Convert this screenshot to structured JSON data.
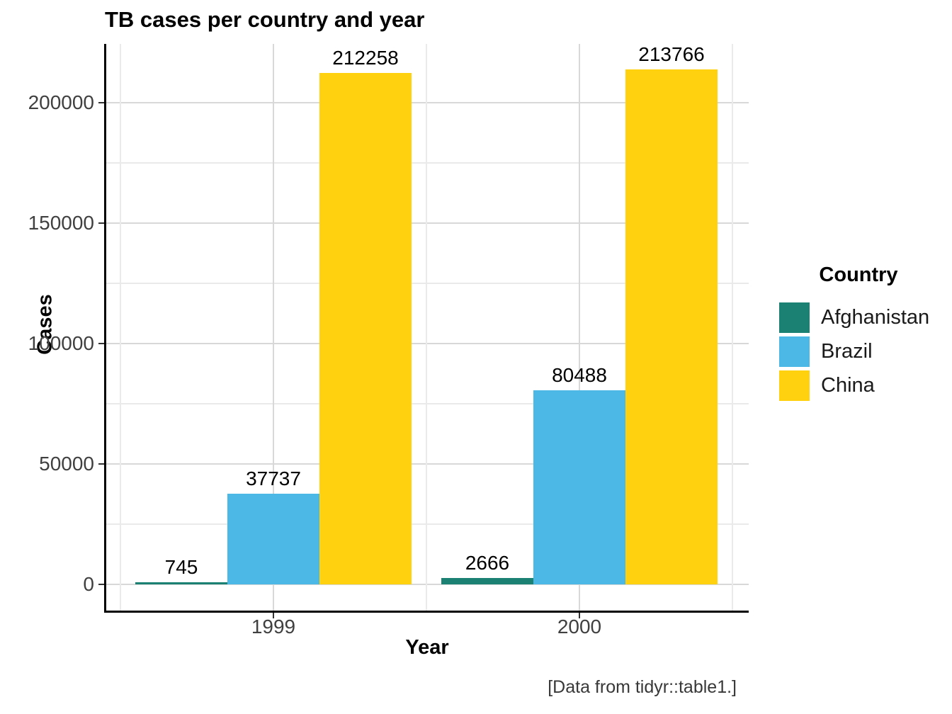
{
  "chart_data": {
    "type": "bar",
    "title": "TB cases per country and year",
    "xlabel": "Year",
    "ylabel": "Cases",
    "caption": "[Data from tidyr::table1.]",
    "legend_title": "Country",
    "legend_position": "right",
    "grid": "major+minor",
    "bar_labels": true,
    "categories": [
      "1999",
      "2000"
    ],
    "series": [
      {
        "name": "Afghanistan",
        "color": "#1A8173",
        "values": [
          745,
          2666
        ]
      },
      {
        "name": "Brazil",
        "color": "#4CB8E5",
        "values": [
          37737,
          80488
        ]
      },
      {
        "name": "China",
        "color": "#FFD10E",
        "values": [
          212258,
          213766
        ]
      }
    ],
    "y_axis": {
      "major_ticks": [
        0,
        50000,
        100000,
        150000,
        200000
      ],
      "minor_gridlines": [
        25000,
        75000,
        125000,
        175000
      ],
      "range": [
        0,
        224400
      ]
    }
  }
}
